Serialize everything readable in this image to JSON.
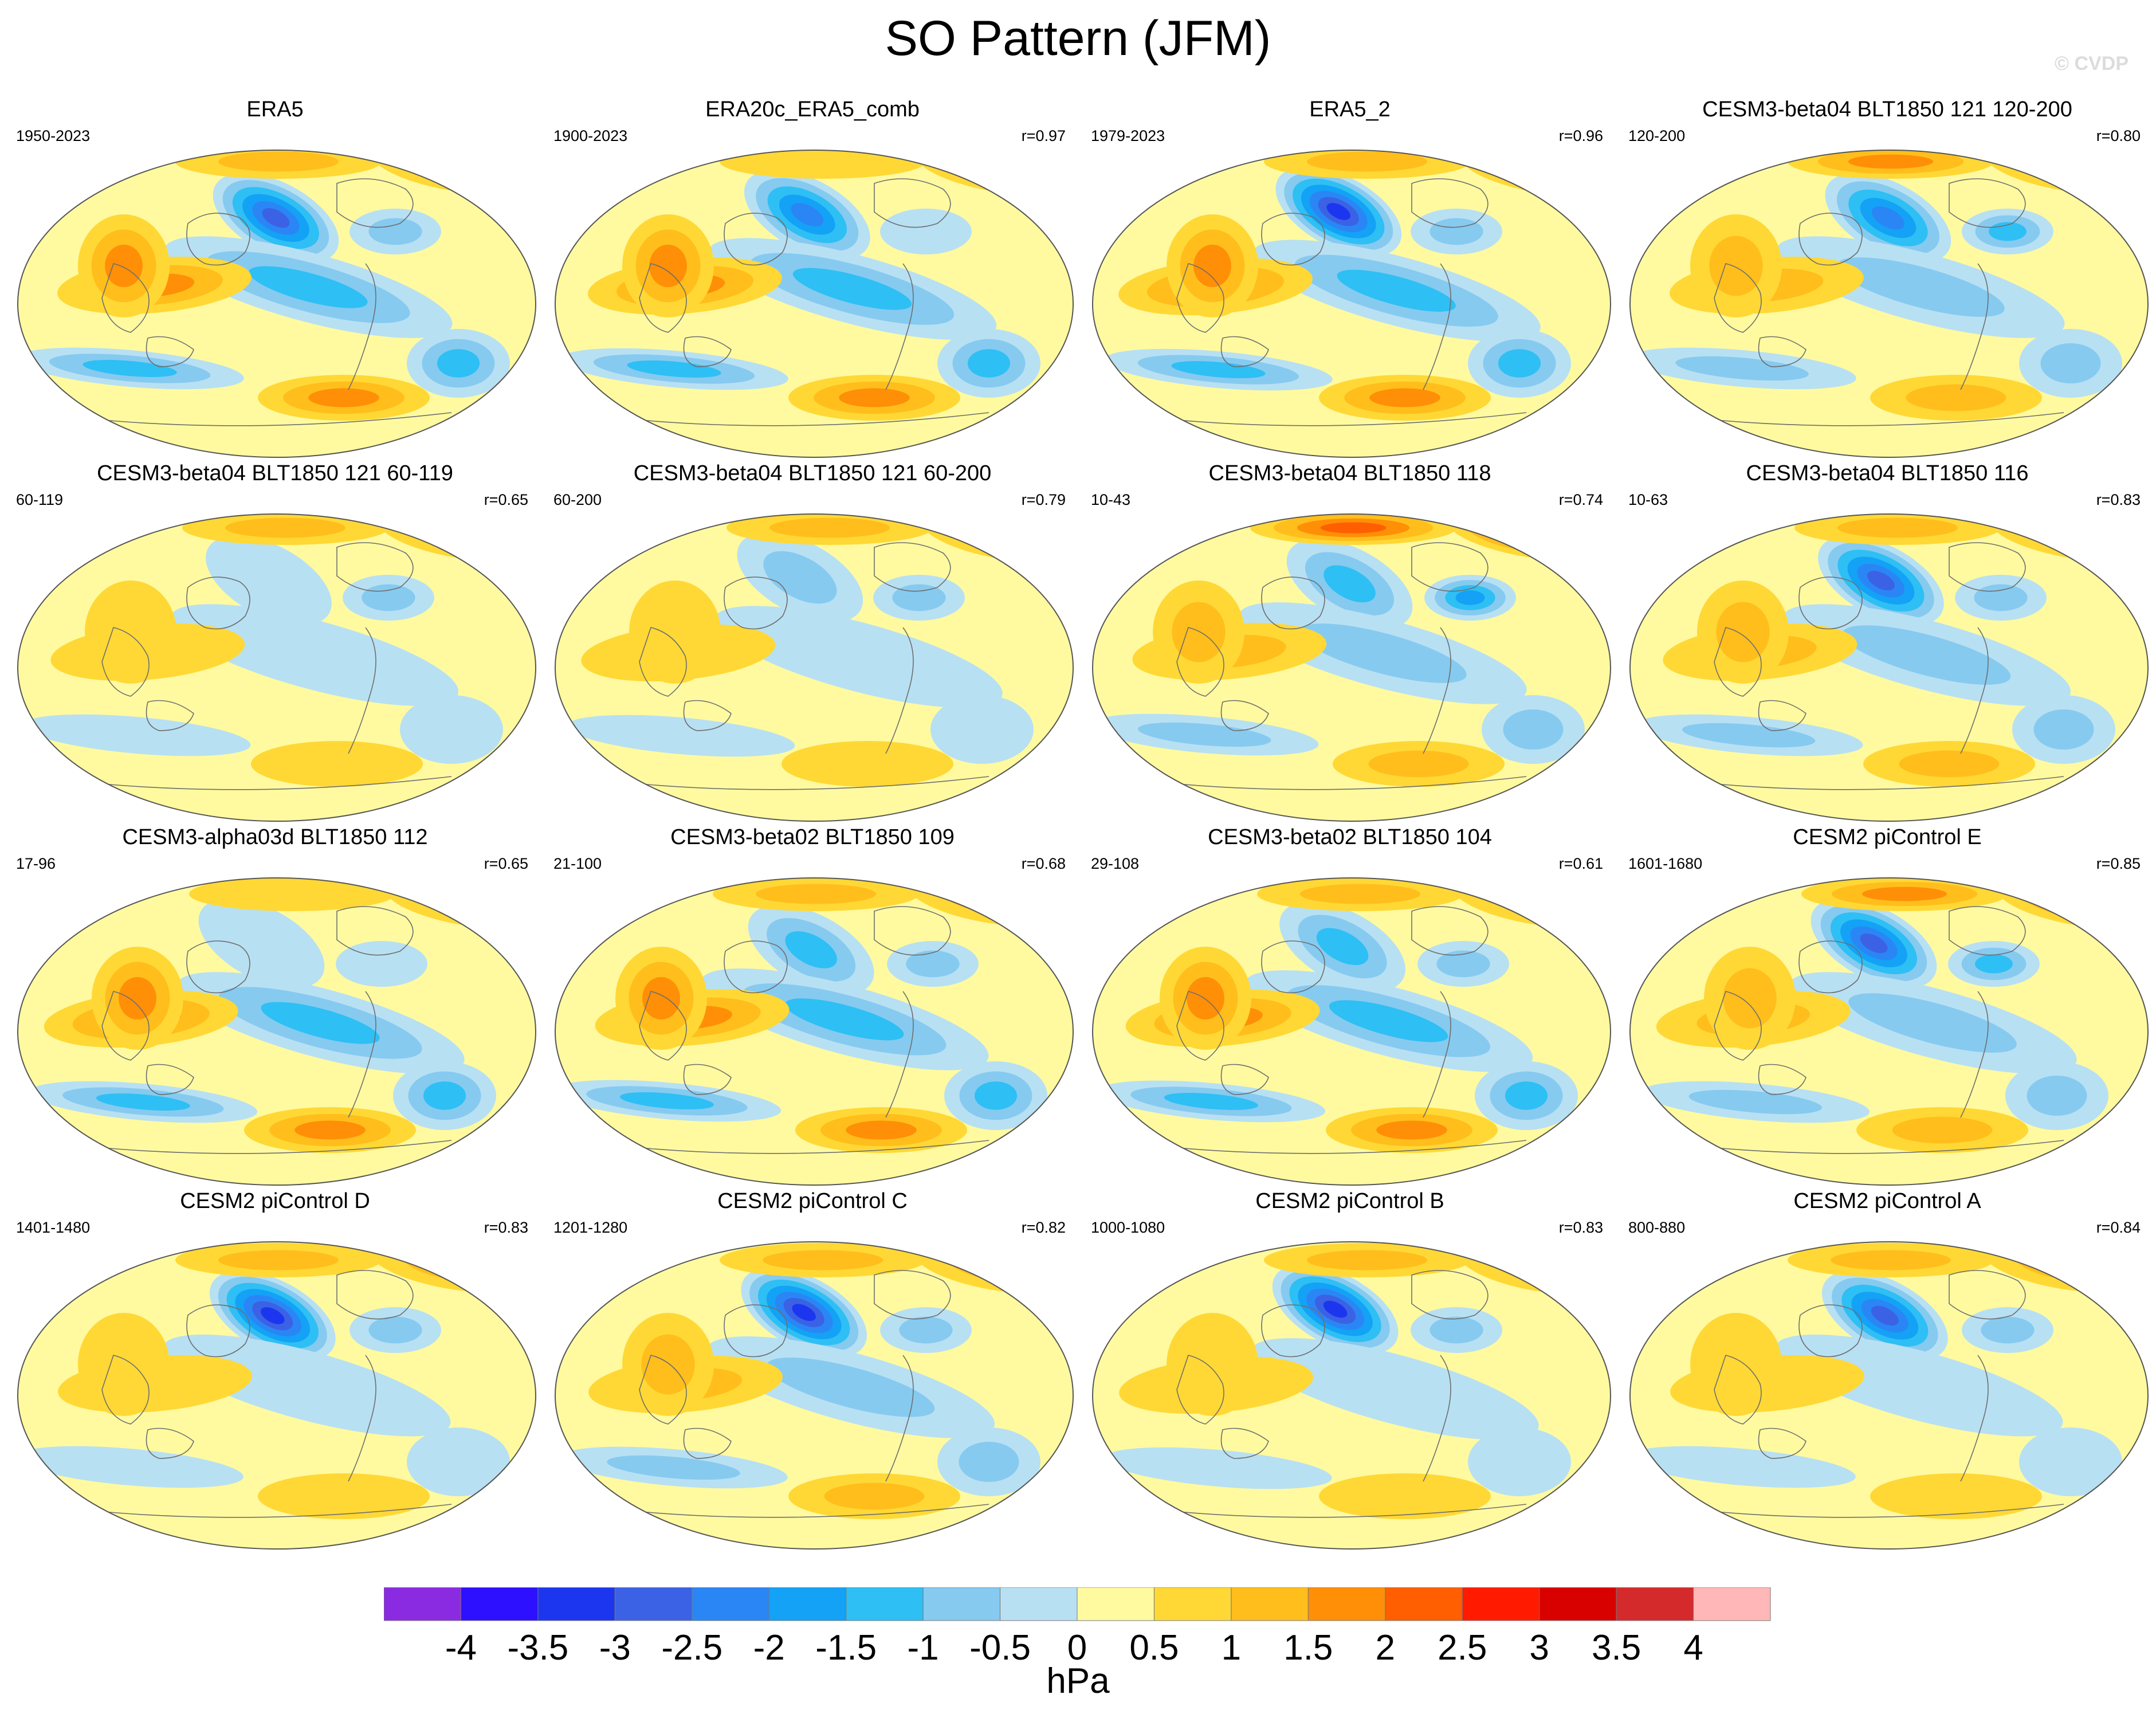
{
  "title": "SO Pattern (JFM)",
  "watermark": "© CVDP",
  "units": "hPa",
  "palette": [
    "#8a2be2",
    "#2d10ff",
    "#1c36f0",
    "#3b62e4",
    "#2b86f5",
    "#13a2f6",
    "#2ebff4",
    "#86caf0",
    "#b8e0f3",
    "#fffaa0",
    "#ffd835",
    "#ffbe1c",
    "#ff8f06",
    "#ff5f00",
    "#ff1a00",
    "#d90000",
    "#d52a2c",
    "#ffb7b7"
  ],
  "colorbar_ticks": [
    "-4",
    "-3.5",
    "-3",
    "-2.5",
    "-2",
    "-1.5",
    "-1",
    "-0.5",
    "0",
    "0.5",
    "1",
    "1.5",
    "2",
    "2.5",
    "3",
    "3.5",
    "4"
  ],
  "panels": [
    {
      "name": "ERA5",
      "years": "1950-2023",
      "r": "",
      "al": 1.0,
      "ao": 1.0,
      "ar": 0.5
    },
    {
      "name": "ERA20c_ERA5_comb",
      "years": "1900-2023",
      "r": "r=0.97",
      "al": 0.9,
      "ao": 0.95,
      "ar": 0.4
    },
    {
      "name": "ERA5_2",
      "years": "1979-2023",
      "r": "r=0.96",
      "al": 1.1,
      "ao": 1.0,
      "ar": 0.5
    },
    {
      "name": "CESM3-beta04 BLT1850 121 120-200",
      "years": "120-200",
      "r": "r=0.80",
      "al": 0.9,
      "ao": 0.8,
      "ar": 0.8
    },
    {
      "name": "CESM3-beta04 BLT1850 121 60-119",
      "years": "60-119",
      "r": "r=0.65",
      "al": 0.3,
      "ao": 0.4,
      "ar": 0.5
    },
    {
      "name": "CESM3-beta04 BLT1850 121 60-200",
      "years": "60-200",
      "r": "r=0.79",
      "al": 0.4,
      "ao": 0.5,
      "ar": 0.6
    },
    {
      "name": "CESM3-beta04 BLT1850 118",
      "years": "10-43",
      "r": "r=0.74",
      "al": 0.6,
      "ao": 0.7,
      "ar": 1.1
    },
    {
      "name": "CESM3-beta04 BLT1850 116",
      "years": "10-63",
      "r": "r=0.83",
      "al": 1.0,
      "ao": 0.9,
      "ar": 0.6
    },
    {
      "name": "CESM3-alpha03d BLT1850 112",
      "years": "17-96",
      "r": "r=0.65",
      "al": 0.3,
      "ao": 1.2,
      "ar": 0.3
    },
    {
      "name": "CESM3-beta02 BLT1850 109",
      "years": "21-100",
      "r": "r=0.68",
      "al": 0.6,
      "ao": 1.1,
      "ar": 0.6
    },
    {
      "name": "CESM3-beta02 BLT1850 104",
      "years": "29-108",
      "r": "r=0.61",
      "al": 0.5,
      "ao": 1.2,
      "ar": 0.5
    },
    {
      "name": "CESM2 piControl E",
      "years": "1601-1680",
      "r": "r=0.85",
      "al": 1.0,
      "ao": 0.7,
      "ar": 0.9
    },
    {
      "name": "CESM2 piControl D",
      "years": "1401-1480",
      "r": "r=0.83",
      "al": 1.2,
      "ao": 0.6,
      "ar": 0.7
    },
    {
      "name": "CESM2 piControl C",
      "years": "1201-1280",
      "r": "r=0.82",
      "al": 1.1,
      "ao": 0.7,
      "ar": 0.5
    },
    {
      "name": "CESM2 piControl B",
      "years": "1000-1080",
      "r": "r=0.83",
      "al": 1.1,
      "ao": 0.6,
      "ar": 0.6
    },
    {
      "name": "CESM2 piControl A",
      "years": "800-880",
      "r": "r=0.84",
      "al": 1.0,
      "ao": 0.5,
      "ar": 0.5
    }
  ],
  "chart_data": {
    "type": "heatmap",
    "title": "SO Pattern (JFM)",
    "colorbar_label": "hPa",
    "levels": [
      -4,
      -3.5,
      -3,
      -2.5,
      -2,
      -1.5,
      -1,
      -0.5,
      0,
      0.5,
      1,
      1.5,
      2,
      2.5,
      3,
      3.5,
      4
    ],
    "panels": [
      "ERA5",
      "ERA20c_ERA5_comb",
      "ERA5_2",
      "CESM3-beta04 BLT1850 121 120-200",
      "CESM3-beta04 BLT1850 121 60-119",
      "CESM3-beta04 BLT1850 121 60-200",
      "CESM3-beta04 BLT1850 118",
      "CESM3-beta04 BLT1850 116",
      "CESM3-alpha03d BLT1850 112",
      "CESM3-beta02 BLT1850 109",
      "CESM3-beta02 BLT1850 104",
      "CESM2 piControl E",
      "CESM2 piControl D",
      "CESM2 piControl C",
      "CESM2 piControl B",
      "CESM2 piControl A"
    ],
    "pattern_correlations": [
      "",
      "0.97",
      "0.96",
      "0.80",
      "0.65",
      "0.79",
      "0.74",
      "0.83",
      "0.65",
      "0.68",
      "0.61",
      "0.85",
      "0.83",
      "0.82",
      "0.83",
      "0.84"
    ]
  }
}
